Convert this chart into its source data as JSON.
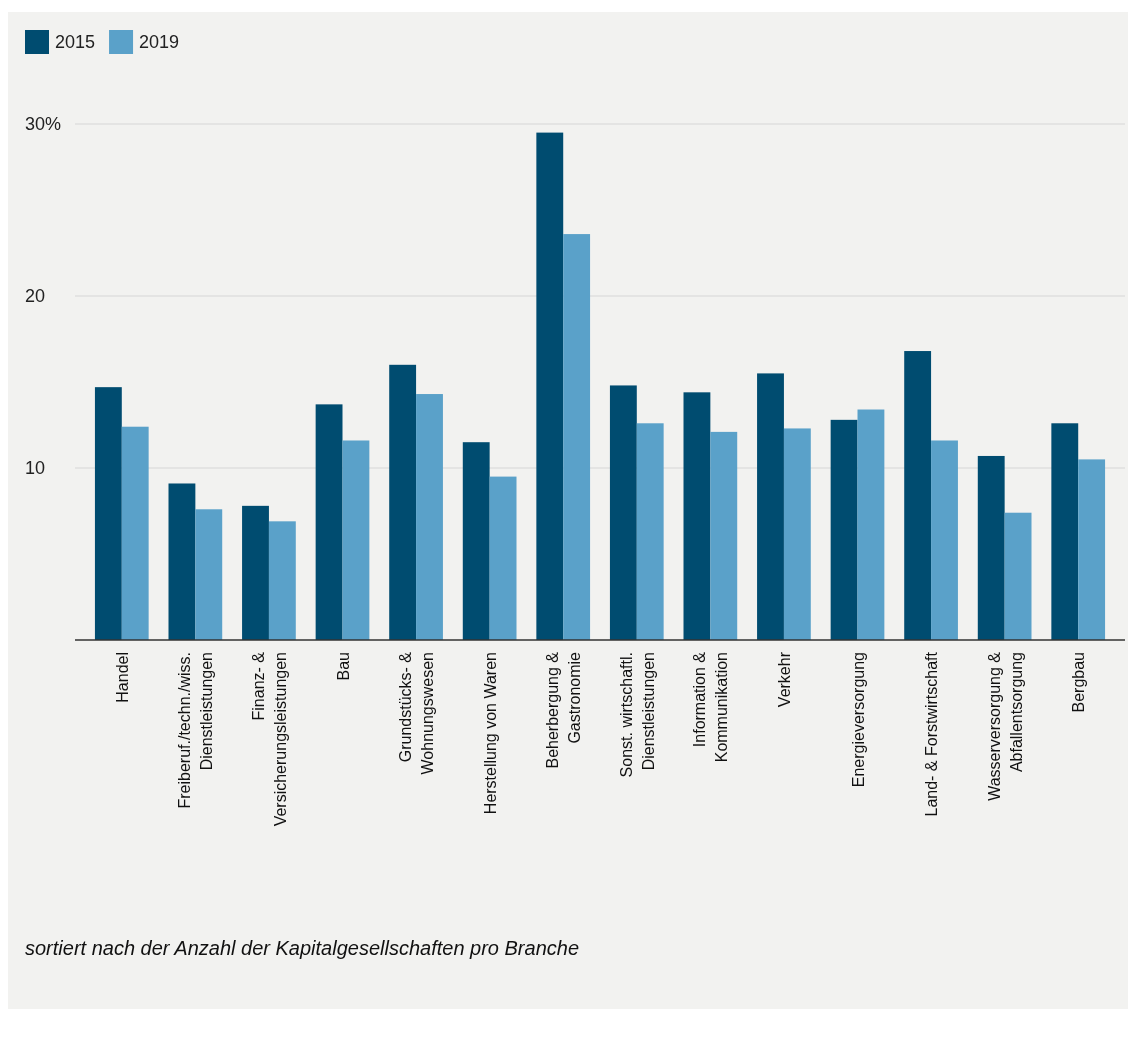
{
  "chart_data": {
    "type": "bar",
    "categories": [
      "Handel",
      "Freiberuf./techn./wiss.\nDienstleistungen",
      "Finanz- &\nVersicherungsleistungen",
      "Bau",
      "Grundstücks- &\nWohnungswesen",
      "Herstellung von Waren",
      "Beherbergung &\nGastronomie",
      "Sonst. wirtschaftl.\nDienstleistungen",
      "Information &\nKommunikation",
      "Verkehr",
      "Energieversorgung",
      "Land- & Forstwirtschaft",
      "Wasserversorgung &\nAbfallentsorgung",
      "Bergbau"
    ],
    "series": [
      {
        "name": "2015",
        "color": "#004c70",
        "values": [
          14.7,
          9.1,
          7.8,
          13.7,
          16.0,
          11.5,
          29.5,
          14.8,
          14.4,
          15.5,
          12.8,
          16.8,
          10.7,
          12.6
        ]
      },
      {
        "name": "2019",
        "color": "#5aa1c9",
        "values": [
          12.4,
          7.6,
          6.9,
          11.6,
          14.3,
          9.5,
          23.6,
          12.6,
          12.1,
          12.3,
          13.4,
          11.6,
          7.4,
          10.5
        ]
      }
    ],
    "ylim": [
      0,
      30
    ],
    "yticks": [
      10,
      20,
      {
        "value": 30,
        "label": "30%"
      }
    ],
    "grid": "y",
    "legend": "top left",
    "annotations": [
      "sortiert nach der Anzahl der Kapitalgesellschaften pro Branche"
    ]
  }
}
